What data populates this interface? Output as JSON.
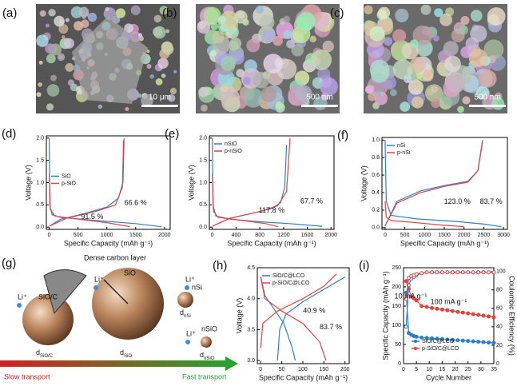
{
  "images": [
    {
      "panel": "(a)",
      "scale_bar": "10 μm"
    },
    {
      "panel": "(b)",
      "scale_bar": "500 nm"
    },
    {
      "panel": "(c)",
      "scale_bar": "500 nm"
    }
  ],
  "diagram": {
    "panel": "(g)",
    "coating": "Dense carbon layer",
    "ion": "Li⁺",
    "particles": [
      {
        "name": "SiO/C",
        "d": "d",
        "sub": "SiO/C"
      },
      {
        "name": "SiO",
        "d": "d",
        "sub": "SiO"
      },
      {
        "name": "nSi",
        "d": "d",
        "sub": "nSi"
      },
      {
        "name": "nSiO",
        "d": "d",
        "sub": "nSiO"
      }
    ],
    "slow": "Slow transport",
    "fast": "Fast transport"
  },
  "chart_data": [
    {
      "type": "line",
      "panel": "(d)",
      "xlabel": "Specific Capacity (mAh g⁻¹)",
      "ylabel": "Voltage (V)",
      "xlim": [
        -50,
        2100
      ],
      "xticks": [
        0,
        500,
        1000,
        1500,
        2000
      ],
      "ylim": [
        -0.05,
        2.05
      ],
      "yticks": [
        {
          "value": 0,
          "label": "0.0"
        },
        {
          "value": 0.5,
          "label": "0.5"
        },
        {
          "value": 1,
          "label": "1.0"
        },
        {
          "value": 1.5,
          "label": "1.5"
        },
        {
          "value": 2,
          "label": "2.0"
        }
      ],
      "legend": "center-left",
      "annotations": [
        "91.5 %",
        "66.6 %"
      ],
      "series": [
        {
          "name": "SiO",
          "color": "#2a7fd4",
          "x": [
            0,
            10,
            50,
            200,
            800,
            1500,
            1950,
            null,
            0,
            200,
            600,
            1000,
            1200,
            1280,
            1300
          ],
          "values": [
            2.0,
            0.5,
            0.28,
            0.22,
            0.15,
            0.08,
            0.01,
            null,
            0.02,
            0.18,
            0.3,
            0.45,
            0.65,
            1.0,
            2.0
          ]
        },
        {
          "name": "p-SiO",
          "color": "#e8413c",
          "x": [
            0,
            20,
            100,
            500,
            1000,
            1400,
            null,
            0,
            300,
            800,
            1150,
            1270,
            1290
          ],
          "values": [
            1.2,
            0.4,
            0.25,
            0.18,
            0.1,
            0.01,
            null,
            0.02,
            0.2,
            0.35,
            0.5,
            0.9,
            1.95
          ]
        }
      ]
    },
    {
      "type": "line",
      "panel": "(e)",
      "xlabel": "Specific Capacity (mAh g⁻¹)",
      "ylabel": "Voltage (V)",
      "xlim": [
        -50,
        2050
      ],
      "xticks": [
        0,
        400,
        800,
        1200,
        1600,
        2000
      ],
      "ylim": [
        -0.05,
        2.05
      ],
      "yticks": [
        {
          "value": 0,
          "label": "0.0"
        },
        {
          "value": 0.5,
          "label": "0.5"
        },
        {
          "value": 1,
          "label": "1.0"
        },
        {
          "value": 1.5,
          "label": "1.5"
        },
        {
          "value": 2,
          "label": "2.0"
        }
      ],
      "legend": "upper-left",
      "annotations": [
        "117.8 %",
        "67.7 %"
      ],
      "series": [
        {
          "name": "nSiO",
          "color": "#2a7fd4",
          "x": [
            0,
            10,
            60,
            300,
            800,
            1300,
            1850,
            null,
            0,
            300,
            700,
            1000,
            1150,
            1220,
            1250
          ],
          "values": [
            2.0,
            0.5,
            0.25,
            0.18,
            0.12,
            0.08,
            0.02,
            null,
            0.02,
            0.2,
            0.32,
            0.42,
            0.55,
            0.9,
            1.85
          ]
        },
        {
          "name": "p-nSiO",
          "color": "#e8413c",
          "x": [
            0,
            20,
            100,
            500,
            900,
            1110,
            null,
            0,
            300,
            800,
            1100,
            1250,
            1310
          ],
          "values": [
            1.2,
            0.35,
            0.22,
            0.15,
            0.08,
            0.01,
            null,
            0.02,
            0.2,
            0.35,
            0.48,
            0.8,
            2.0
          ]
        }
      ]
    },
    {
      "type": "line",
      "panel": "(f)",
      "xlabel": "Specific Capacity (mAh g⁻¹)",
      "ylabel": "Voltage (V)",
      "xlim": [
        -80,
        3100
      ],
      "xticks": [
        0,
        500,
        1000,
        1500,
        2000,
        2500,
        3000
      ],
      "ylim": [
        -0.02,
        1.03
      ],
      "yticks": [
        {
          "value": 0,
          "label": "0.0"
        },
        0.2,
        0.4,
        0.6,
        0.8,
        {
          "value": 1,
          "label": "1.0"
        }
      ],
      "legend": "upper-left",
      "annotations": [
        "123.0 %",
        "83.7 %"
      ],
      "series": [
        {
          "name": "nSi",
          "color": "#2a7fd4",
          "x": [
            0,
            30,
            150,
            800,
            1800,
            2500,
            2950,
            null,
            0,
            300,
            900,
            1500,
            2100,
            2350,
            2470
          ],
          "values": [
            1.0,
            0.3,
            0.14,
            0.1,
            0.07,
            0.04,
            0.01,
            null,
            0.02,
            0.3,
            0.42,
            0.48,
            0.53,
            0.65,
            1.0
          ]
        },
        {
          "name": "p-nSi",
          "color": "#e8413c",
          "x": [
            0,
            30,
            150,
            700,
            1400,
            2000,
            null,
            0,
            300,
            900,
            1500,
            2100,
            2350,
            2470
          ],
          "values": [
            0.3,
            0.12,
            0.08,
            0.06,
            0.03,
            0.01,
            null,
            0.02,
            0.28,
            0.4,
            0.47,
            0.52,
            0.65,
            0.98
          ]
        }
      ]
    },
    {
      "type": "line",
      "panel": "(h)",
      "xlabel": "Specific Capacity (mAh g⁻¹)",
      "ylabel": "Voltage (V)",
      "xlim": [
        -8,
        210
      ],
      "xticks": [
        0,
        50,
        100,
        150,
        200
      ],
      "ylim": [
        2.95,
        4.5
      ],
      "yticks": [
        {
          "value": 3,
          "label": "3.0"
        },
        3.5,
        {
          "value": 4,
          "label": "4.0"
        },
        4.5
      ],
      "legend": "upper-left",
      "annotations": [
        "40.9 %",
        "83.7 %"
      ],
      "series": [
        {
          "name": "SiO/C@LCO",
          "color": "#2a7fd4",
          "x": [
            0,
            10,
            30,
            55,
            75,
            82,
            null,
            40,
            45,
            60,
            100,
            150,
            200
          ],
          "values": [
            4.35,
            4.05,
            3.85,
            3.6,
            3.2,
            3.0,
            null,
            3.0,
            3.5,
            3.75,
            3.95,
            4.15,
            4.35
          ]
        },
        {
          "name": "p-SiO/C@LCO",
          "color": "#e8413c",
          "x": [
            0,
            5,
            40,
            100,
            150,
            180,
            null,
            0,
            10,
            50,
            100,
            140,
            155
          ],
          "values": [
            3.2,
            3.6,
            3.8,
            4.0,
            4.2,
            4.4,
            null,
            4.35,
            4.0,
            3.8,
            3.6,
            3.3,
            3.0
          ]
        }
      ]
    },
    {
      "type": "line",
      "panel": "(i)",
      "markers": true,
      "xlabel": "Cycle Number",
      "ylabel": "Specific Capacity (mAh g⁻¹)",
      "y2label": "Coulombic Efficiency (%)",
      "xlim": [
        0,
        35
      ],
      "xticks": [
        0,
        5,
        10,
        15,
        20,
        25,
        30,
        35
      ],
      "ylim": [
        0,
        250
      ],
      "yticks": [
        0,
        50,
        100,
        150,
        200,
        250
      ],
      "y2lim": [
        0,
        104
      ],
      "y2ticks": [
        0,
        20,
        40,
        60,
        80,
        100
      ],
      "legend": "lower-center",
      "annotations": [
        "10 mA g⁻¹",
        "100 mA g⁻¹"
      ],
      "series": [
        {
          "name": "SiO/C@LCO",
          "color": "#2a7fd4",
          "x": [
            1,
            2,
            3,
            4,
            5,
            7,
            9,
            11,
            13,
            15,
            17,
            19,
            21,
            23,
            25,
            27,
            29,
            31,
            33,
            35
          ],
          "values": [
            185,
            80,
            75,
            72,
            70,
            68,
            67,
            66,
            65,
            64,
            63,
            62,
            61,
            60,
            59,
            58,
            57,
            56,
            55,
            54
          ]
        },
        {
          "name": "p-SiO/C@LCO",
          "color": "#e8413c",
          "x": [
            1,
            2,
            3,
            4,
            5,
            7,
            9,
            11,
            13,
            15,
            17,
            19,
            21,
            23,
            25,
            27,
            29,
            31,
            33,
            35
          ],
          "values": [
            215,
            195,
            175,
            170,
            165,
            150,
            148,
            145,
            143,
            141,
            139,
            137,
            135,
            133,
            131,
            129,
            127,
            125,
            123,
            121
          ]
        },
        {
          "axis": "y2",
          "color": "#2a7fd4",
          "x": [
            1,
            2,
            3,
            4,
            5,
            7,
            9,
            11,
            13,
            15,
            17,
            19,
            21,
            23,
            25,
            27,
            29,
            31,
            33,
            35
          ],
          "values": [
            40,
            85,
            92,
            94,
            96,
            98,
            99,
            99,
            99,
            99,
            99,
            99,
            99,
            99,
            99,
            99,
            99,
            99,
            99,
            99
          ]
        },
        {
          "axis": "y2",
          "color": "#e8413c",
          "x": [
            1,
            2,
            3,
            4,
            5,
            7,
            9,
            11,
            13,
            15,
            17,
            19,
            21,
            23,
            25,
            27,
            29,
            31,
            33,
            35
          ],
          "values": [
            70,
            93,
            95,
            96,
            97,
            98,
            99,
            99,
            99,
            99,
            99,
            99,
            99,
            99,
            99,
            99,
            99,
            99,
            99,
            99
          ]
        }
      ]
    }
  ]
}
